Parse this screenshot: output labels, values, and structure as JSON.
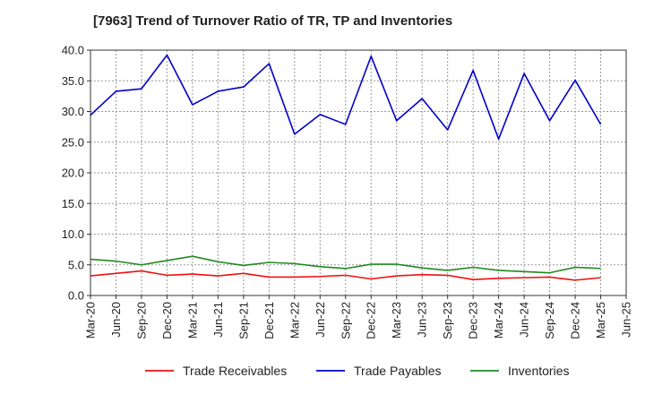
{
  "chart_data": {
    "type": "line",
    "title": "[7963]  Trend of Turnover Ratio of TR, TP and Inventories",
    "xlabel": "",
    "ylabel": "",
    "ylim": [
      0,
      40
    ],
    "yticks": [
      "0.0",
      "5.0",
      "10.0",
      "15.0",
      "20.0",
      "25.0",
      "30.0",
      "35.0",
      "40.0"
    ],
    "x_tick_labels": [
      "Mar-20",
      "Jun-20",
      "Sep-20",
      "Dec-20",
      "Mar-21",
      "Jun-21",
      "Sep-21",
      "Dec-21",
      "Mar-22",
      "Jun-22",
      "Sep-22",
      "Dec-22",
      "Mar-23",
      "Jun-23",
      "Sep-23",
      "Dec-23",
      "Mar-24",
      "Jun-24",
      "Sep-24",
      "Dec-24",
      "Mar-25",
      "Jun-25"
    ],
    "grid": true,
    "legend_position": "bottom",
    "x": [
      "Mar-20",
      "Jun-20",
      "Sep-20",
      "Dec-20",
      "Mar-21",
      "Jun-21",
      "Sep-21",
      "Dec-21",
      "Mar-22",
      "Jun-22",
      "Sep-22",
      "Dec-22",
      "Mar-23",
      "Jun-23",
      "Sep-23",
      "Dec-23",
      "Mar-24",
      "Jun-24",
      "Sep-24",
      "Dec-24",
      "Mar-25"
    ],
    "series": [
      {
        "name": "Trade Receivables",
        "color": "#ee1111",
        "values": [
          3.2,
          3.6,
          4.0,
          3.3,
          3.5,
          3.2,
          3.6,
          3.0,
          3.0,
          3.1,
          3.3,
          2.7,
          3.2,
          3.4,
          3.3,
          2.6,
          2.8,
          2.9,
          3.0,
          2.5,
          2.9
        ]
      },
      {
        "name": "Trade Payables",
        "color": "#0000cc",
        "values": [
          29.4,
          33.3,
          33.7,
          39.2,
          31.1,
          33.3,
          34.0,
          37.8,
          26.3,
          29.5,
          27.9,
          39.0,
          28.5,
          32.1,
          27.0,
          36.7,
          25.5,
          36.2,
          28.5,
          35.1,
          27.9
        ]
      },
      {
        "name": "Inventories",
        "color": "#228822",
        "values": [
          5.9,
          5.6,
          5.0,
          5.7,
          6.4,
          5.5,
          4.9,
          5.4,
          5.2,
          4.7,
          4.4,
          5.1,
          5.1,
          4.5,
          4.1,
          4.6,
          4.1,
          3.9,
          3.7,
          4.6,
          4.4
        ]
      }
    ]
  }
}
